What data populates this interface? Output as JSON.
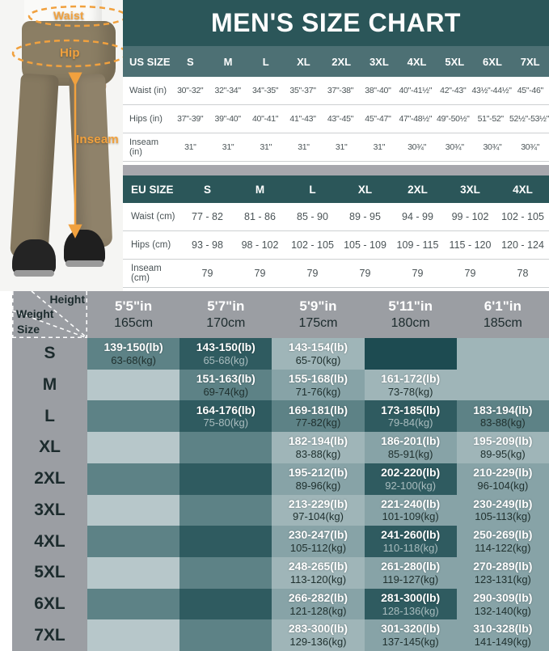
{
  "title": "MEN'S SIZE CHART",
  "photo": {
    "waist_label": "Waist",
    "hip_label": "Hip",
    "inseam_label": "Inseam",
    "accent_color": "#F1A13E"
  },
  "colors": {
    "teal_dark": "#2B5659",
    "teal_header_row": "#4D7074",
    "gray_strip": "#A7A7AD",
    "gray_panel": "#9B9EA3",
    "tones": [
      "#B7C7CA",
      "#9FB5B8",
      "#87A3A7",
      "#5D8286",
      "#2F5B60",
      "#1D4B51"
    ]
  },
  "chart_data": [
    {
      "type": "table",
      "name": "us_size_table",
      "header_label": "US SIZE",
      "sizes": [
        "S",
        "M",
        "L",
        "XL",
        "2XL",
        "3XL",
        "4XL",
        "5XL",
        "6XL",
        "7XL"
      ],
      "rows": [
        {
          "label": "Waist (in)",
          "values": [
            "30\"-32\"",
            "32\"-34\"",
            "34\"-35\"",
            "35\"-37\"",
            "37\"-38\"",
            "38\"-40\"",
            "40\"-41½\"",
            "42\"-43\"",
            "43½\"-44½\"",
            "45\"-46\""
          ]
        },
        {
          "label": "Hips (in)",
          "values": [
            "37\"-39\"",
            "39\"-40\"",
            "40\"-41\"",
            "41\"-43\"",
            "43\"-45\"",
            "45\"-47\"",
            "47\"-48½\"",
            "49\"-50½\"",
            "51\"-52\"",
            "52½\"-53½\""
          ]
        },
        {
          "label": "Inseam (in)",
          "values": [
            "31\"",
            "31\"",
            "31\"",
            "31\"",
            "31\"",
            "31\"",
            "30¾\"",
            "30¾\"",
            "30¾\"",
            "30¾\""
          ]
        }
      ]
    },
    {
      "type": "table",
      "name": "eu_size_table",
      "header_label": "EU SIZE",
      "sizes": [
        "S",
        "M",
        "L",
        "XL",
        "2XL",
        "3XL",
        "4XL"
      ],
      "rows": [
        {
          "label": "Waist (cm)",
          "values": [
            "77 - 82",
            "81 - 86",
            "85 - 90",
            "89 - 95",
            "94 - 99",
            "99 - 102",
            "102 - 105"
          ]
        },
        {
          "label": "Hips (cm)",
          "values": [
            "93 - 98",
            "98 - 102",
            "102 - 105",
            "105 - 109",
            "109 - 115",
            "115 - 120",
            "120 - 124"
          ]
        },
        {
          "label": "Inseam (cm)",
          "values": [
            "79",
            "79",
            "79",
            "79",
            "79",
            "79",
            "78"
          ]
        }
      ]
    },
    {
      "type": "table",
      "name": "height_weight_matrix",
      "corner_height": "Height",
      "corner_weight": "Weight",
      "corner_size": "Size",
      "heights": [
        {
          "ft": "5'5\"in",
          "cm": "165cm"
        },
        {
          "ft": "5'7\"in",
          "cm": "170cm"
        },
        {
          "ft": "5'9\"in",
          "cm": "175cm"
        },
        {
          "ft": "5'11\"in",
          "cm": "180cm"
        },
        {
          "ft": "6'1\"in",
          "cm": "185cm"
        }
      ],
      "rows": [
        {
          "size": "S",
          "cells": [
            {
              "lb": "139-150(lb)",
              "kg": "63-68(kg)",
              "tone": 3
            },
            {
              "lb": "143-150(lb)",
              "kg": "65-68(kg)",
              "tone": 4
            },
            {
              "lb": "143-154(lb)",
              "kg": "65-70(kg)",
              "tone": 1
            },
            {
              "tone": 5
            },
            {
              "tone": 1
            }
          ]
        },
        {
          "size": "M",
          "cells": [
            {
              "tone": 0
            },
            {
              "lb": "151-163(lb)",
              "kg": "69-74(kg)",
              "tone": 3
            },
            {
              "lb": "155-168(lb)",
              "kg": "71-76(kg)",
              "tone": 2
            },
            {
              "lb": "161-172(lb)",
              "kg": "73-78(kg)",
              "tone": 1
            },
            {
              "tone": 1
            }
          ]
        },
        {
          "size": "L",
          "cells": [
            {
              "tone": 3
            },
            {
              "lb": "164-176(lb)",
              "kg": "75-80(kg)",
              "tone": 4
            },
            {
              "lb": "169-181(lb)",
              "kg": "77-82(kg)",
              "tone": 3
            },
            {
              "lb": "173-185(lb)",
              "kg": "79-84(kg)",
              "tone": 4
            },
            {
              "lb": "183-194(lb)",
              "kg": "83-88(kg)",
              "tone": 3
            }
          ]
        },
        {
          "size": "XL",
          "cells": [
            {
              "tone": 0
            },
            {
              "tone": 3
            },
            {
              "lb": "182-194(lb)",
              "kg": "83-88(kg)",
              "tone": 1
            },
            {
              "lb": "186-201(lb)",
              "kg": "85-91(kg)",
              "tone": 2
            },
            {
              "lb": "195-209(lb)",
              "kg": "89-95(kg)",
              "tone": 1
            }
          ]
        },
        {
          "size": "2XL",
          "cells": [
            {
              "tone": 3
            },
            {
              "tone": 4
            },
            {
              "lb": "195-212(lb)",
              "kg": "89-96(kg)",
              "tone": 2
            },
            {
              "lb": "202-220(lb)",
              "kg": "92-100(kg)",
              "tone": 4
            },
            {
              "lb": "210-229(lb)",
              "kg": "96-104(kg)",
              "tone": 2
            }
          ]
        },
        {
          "size": "3XL",
          "cells": [
            {
              "tone": 0
            },
            {
              "tone": 3
            },
            {
              "lb": "213-229(lb)",
              "kg": "97-104(kg)",
              "tone": 1
            },
            {
              "lb": "221-240(lb)",
              "kg": "101-109(kg)",
              "tone": 2
            },
            {
              "lb": "230-249(lb)",
              "kg": "105-113(kg)",
              "tone": 2
            }
          ]
        },
        {
          "size": "4XL",
          "cells": [
            {
              "tone": 3
            },
            {
              "tone": 4
            },
            {
              "lb": "230-247(lb)",
              "kg": "105-112(kg)",
              "tone": 2
            },
            {
              "lb": "241-260(lb)",
              "kg": "110-118(kg)",
              "tone": 4
            },
            {
              "lb": "250-269(lb)",
              "kg": "114-122(kg)",
              "tone": 2
            }
          ]
        },
        {
          "size": "5XL",
          "cells": [
            {
              "tone": 0
            },
            {
              "tone": 3
            },
            {
              "lb": "248-265(lb)",
              "kg": "113-120(kg)",
              "tone": 1
            },
            {
              "lb": "261-280(lb)",
              "kg": "119-127(kg)",
              "tone": 2
            },
            {
              "lb": "270-289(lb)",
              "kg": "123-131(kg)",
              "tone": 2
            }
          ]
        },
        {
          "size": "6XL",
          "cells": [
            {
              "tone": 3
            },
            {
              "tone": 4
            },
            {
              "lb": "266-282(lb)",
              "kg": "121-128(kg)",
              "tone": 2
            },
            {
              "lb": "281-300(lb)",
              "kg": "128-136(kg)",
              "tone": 4
            },
            {
              "lb": "290-309(lb)",
              "kg": "132-140(kg)",
              "tone": 2
            }
          ]
        },
        {
          "size": "7XL",
          "cells": [
            {
              "tone": 0
            },
            {
              "tone": 3
            },
            {
              "lb": "283-300(lb)",
              "kg": "129-136(kg)",
              "tone": 1
            },
            {
              "lb": "301-320(lb)",
              "kg": "137-145(kg)",
              "tone": 2
            },
            {
              "lb": "310-328(lb)",
              "kg": "141-149(kg)",
              "tone": 2
            }
          ]
        }
      ]
    }
  ]
}
